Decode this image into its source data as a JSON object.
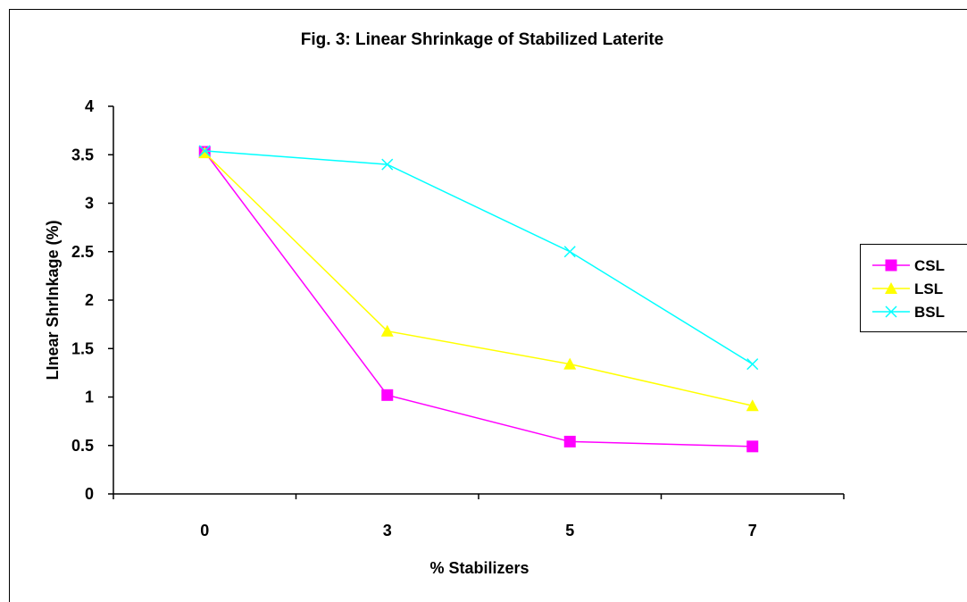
{
  "chart_data": {
    "type": "line",
    "title": "Fig. 3: Linear Shrinkage of Stabilized Laterite",
    "xlabel": "% Stabilizers",
    "ylabel": "LInear ShrInkage (%)",
    "categories": [
      "0",
      "3",
      "5",
      "7"
    ],
    "ylim": [
      0,
      4
    ],
    "yticks": [
      "0",
      "0.5",
      "1",
      "1.5",
      "2",
      "2.5",
      "3",
      "3.5",
      "4"
    ],
    "grid": false,
    "legend_position": "right",
    "series": [
      {
        "name": "CSL",
        "values": [
          3.53,
          1.02,
          0.54,
          0.49
        ],
        "color": "#ff00ff",
        "marker": "square"
      },
      {
        "name": "LSL",
        "values": [
          3.52,
          1.68,
          1.34,
          0.91
        ],
        "color": "#ffff00",
        "marker": "triangle"
      },
      {
        "name": "BSL",
        "values": [
          3.54,
          3.4,
          2.5,
          1.34
        ],
        "color": "#00ffff",
        "marker": "x"
      }
    ]
  }
}
